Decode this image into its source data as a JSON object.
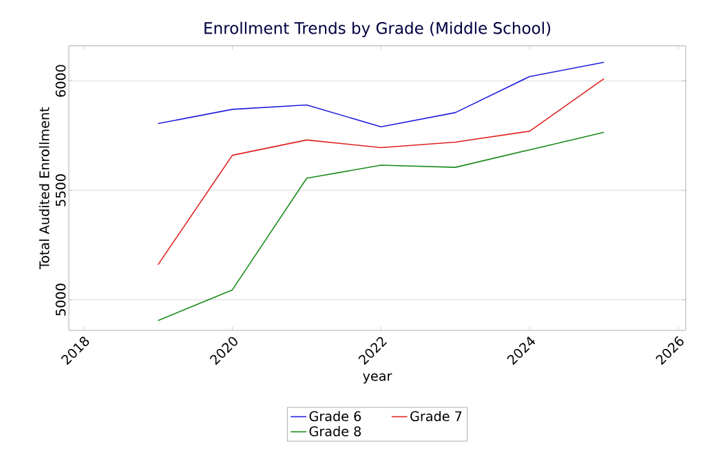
{
  "chart_data": {
    "type": "line",
    "title": "Enrollment Trends by Grade (Middle School)",
    "xlabel": "year",
    "ylabel": "Total Audited Enrollment",
    "x": [
      2019,
      2020,
      2021,
      2022,
      2023,
      2024,
      2025
    ],
    "series": [
      {
        "name": "Grade 6",
        "color": "#1f1fe0",
        "values": [
          5805,
          5870,
          5890,
          5790,
          5855,
          6020,
          6085
        ]
      },
      {
        "name": "Grade 7",
        "color": "#e02020",
        "values": [
          5160,
          5660,
          5730,
          5695,
          5720,
          5770,
          6010
        ]
      },
      {
        "name": "Grade 8",
        "color": "#1a8a1a",
        "values": [
          4905,
          5045,
          5555,
          5615,
          5605,
          5685,
          5765
        ]
      }
    ],
    "xlim": [
      2017.8,
      2026.1
    ],
    "xticks": [
      2018,
      2020,
      2022,
      2024,
      2026
    ],
    "ylim": [
      4860,
      6160
    ],
    "yticks": [
      5000,
      5500,
      6000
    ],
    "grid": "y",
    "legend": "bottom",
    "marker": "none",
    "line_style": "solid"
  }
}
